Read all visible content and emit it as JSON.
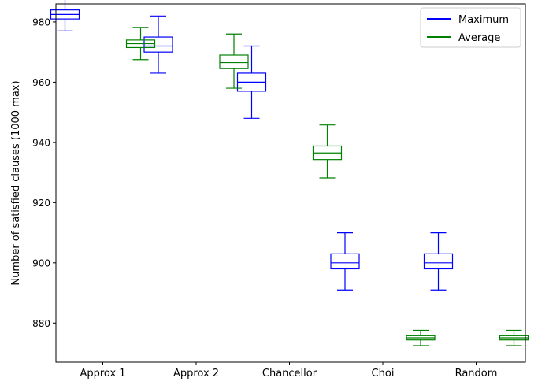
{
  "chart_data": {
    "type": "box",
    "title": "",
    "xlabel": "",
    "ylabel": "Number of satisfied clauses (1000 max)",
    "ylim": [
      867,
      986
    ],
    "yticks": [
      880,
      900,
      920,
      940,
      960,
      980
    ],
    "categories": [
      "Approx 1",
      "Approx 2",
      "Chancellor",
      "Choi",
      "Random"
    ],
    "grid": false,
    "legend_position": "top-right",
    "series": [
      {
        "name": "Maximum",
        "color": "#0000ff",
        "boxes": [
          {
            "whislo": 977,
            "q1": 981,
            "med": 982.5,
            "q3": 984,
            "whishi": 988
          },
          {
            "whislo": 963,
            "q1": 970,
            "med": 972,
            "q3": 975,
            "whishi": 982
          },
          {
            "whislo": 948,
            "q1": 957,
            "med": 960,
            "q3": 963,
            "whishi": 972
          },
          {
            "whislo": 891,
            "q1": 898,
            "med": 900,
            "q3": 903,
            "whishi": 910
          },
          {
            "whislo": 891,
            "q1": 898,
            "med": 900,
            "q3": 903,
            "whishi": 910
          }
        ]
      },
      {
        "name": "Average",
        "color": "#008000",
        "boxes": [
          {
            "whislo": 967.5,
            "q1": 971.5,
            "med": 972.8,
            "q3": 974,
            "whishi": 978.2
          },
          {
            "whislo": 958,
            "q1": 964.5,
            "med": 966.5,
            "q3": 969,
            "whishi": 976
          },
          {
            "whislo": 928.2,
            "q1": 934.3,
            "med": 936.5,
            "q3": 938.8,
            "whishi": 945.8
          },
          {
            "whislo": 872.5,
            "q1": 874.4,
            "med": 875.1,
            "q3": 875.8,
            "whishi": 877.6
          },
          {
            "whislo": 872.5,
            "q1": 874.4,
            "med": 875.1,
            "q3": 875.8,
            "whishi": 877.6
          }
        ]
      }
    ]
  }
}
